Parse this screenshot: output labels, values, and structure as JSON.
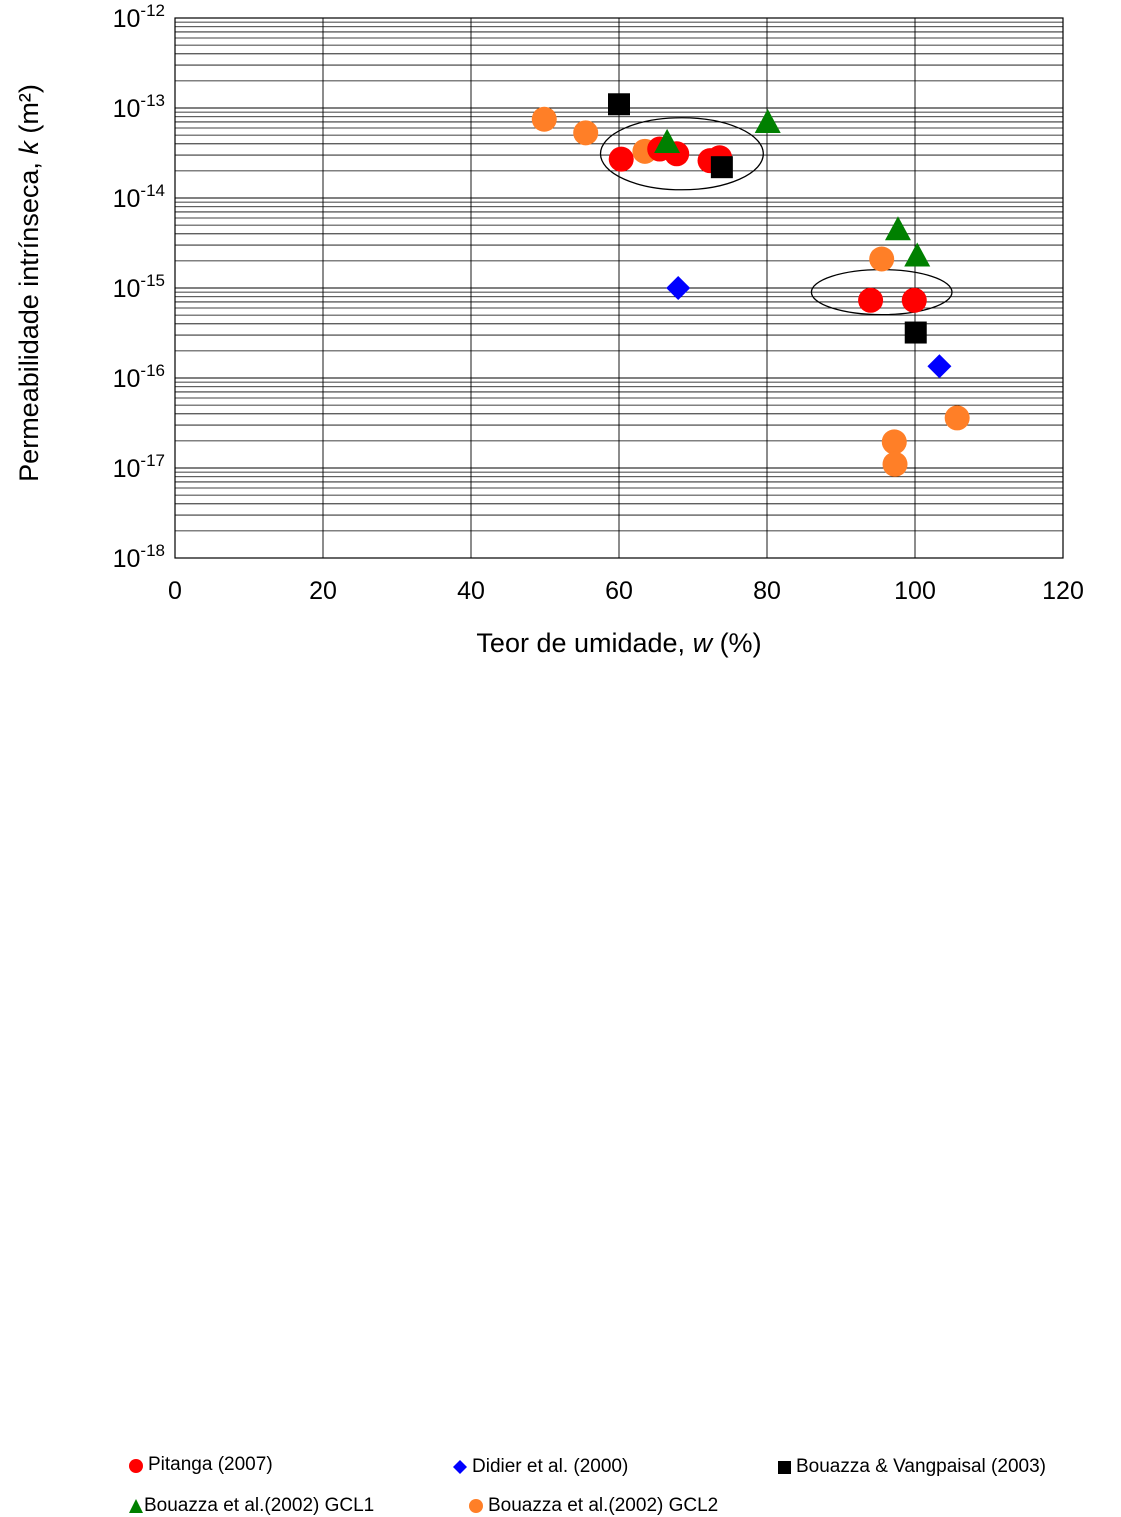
{
  "chart_data": {
    "type": "scatter",
    "title": "",
    "xlabel_prefix": "Teor de umidade, ",
    "xlabel_var": "w",
    "xlabel_suffix": " (%)",
    "ylabel_prefix": "Permeabilidade intrínseca, ",
    "ylabel_var": "k",
    "ylabel_suffix": " (m²)",
    "x_scale": "linear",
    "y_scale": "log",
    "xlim": [
      0,
      120
    ],
    "ylim": [
      1e-18,
      1e-12
    ],
    "x_ticks": [
      "0",
      "20",
      "40",
      "60",
      "80",
      "100",
      "120"
    ],
    "y_ticks": [
      {
        "base": "10",
        "exp": "-18"
      },
      {
        "base": "10",
        "exp": "-17"
      },
      {
        "base": "10",
        "exp": "-16"
      },
      {
        "base": "10",
        "exp": "-15"
      },
      {
        "base": "10",
        "exp": "-14"
      },
      {
        "base": "10",
        "exp": "-13"
      },
      {
        "base": "10",
        "exp": "-12"
      }
    ],
    "grid": true,
    "legend_position": "bottom",
    "series": [
      {
        "name": "Pitanga (2007)",
        "marker": "circle",
        "color": "#ff0000",
        "points": [
          {
            "x": 60.3,
            "y": 2.7e-14
          },
          {
            "x": 65.5,
            "y": 3.5e-14
          },
          {
            "x": 67.8,
            "y": 3.1e-14
          },
          {
            "x": 72.3,
            "y": 2.6e-14
          },
          {
            "x": 73.6,
            "y": 2.8e-14
          },
          {
            "x": 94.0,
            "y": 7.3e-16
          },
          {
            "x": 99.9,
            "y": 7.3e-16
          }
        ]
      },
      {
        "name": "Didier et al. (2000)",
        "marker": "diamond",
        "color": "#0000ff",
        "points": [
          {
            "x": 68.0,
            "y": 1e-15
          },
          {
            "x": 103.3,
            "y": 1.35e-16
          }
        ]
      },
      {
        "name": "Bouazza & Vangpaisal (2003)",
        "marker": "square",
        "color": "#000000",
        "points": [
          {
            "x": 60.0,
            "y": 1.1e-13
          },
          {
            "x": 73.9,
            "y": 2.2e-14
          },
          {
            "x": 100.1,
            "y": 3.2e-16
          }
        ]
      },
      {
        "name": "Bouazza et al.(2002) GCL1",
        "marker": "triangle",
        "color": "#008000",
        "points": [
          {
            "x": 66.5,
            "y": 4.2e-14
          },
          {
            "x": 80.1,
            "y": 7e-14
          },
          {
            "x": 97.7,
            "y": 4.5e-15
          },
          {
            "x": 100.3,
            "y": 2.3e-15
          }
        ]
      },
      {
        "name": "Bouazza et al.(2002) GCL2",
        "marker": "circle",
        "color": "#ff7f27",
        "points": [
          {
            "x": 49.9,
            "y": 7.5e-14
          },
          {
            "x": 55.5,
            "y": 5.3e-14
          },
          {
            "x": 63.5,
            "y": 3.3e-14
          },
          {
            "x": 95.5,
            "y": 2.1e-15
          },
          {
            "x": 97.2,
            "y": 1.95e-17
          },
          {
            "x": 97.3,
            "y": 1.1e-17
          },
          {
            "x": 105.7,
            "y": 3.6e-17
          }
        ]
      }
    ],
    "annotations": [
      {
        "shape": "ellipse",
        "cx": 68.5,
        "cy": 3.1e-14,
        "rx": 11.0,
        "ry_decades": 0.4
      },
      {
        "shape": "ellipse",
        "cx": 95.5,
        "cy": 9e-16,
        "rx": 9.5,
        "ry_decades": 0.25
      }
    ]
  }
}
